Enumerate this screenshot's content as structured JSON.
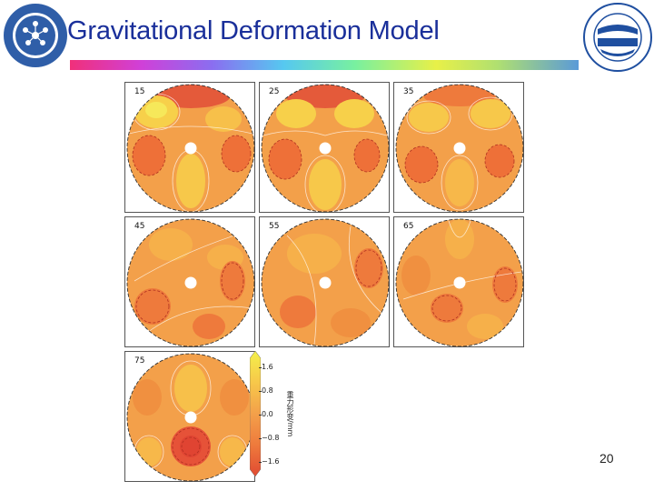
{
  "header": {
    "title": "Gravitational Deformation Model"
  },
  "figure": {
    "panels": [
      {
        "label": "15"
      },
      {
        "label": "25"
      },
      {
        "label": "35"
      },
      {
        "label": "45"
      },
      {
        "label": "55"
      },
      {
        "label": "65"
      },
      {
        "label": "75"
      }
    ],
    "colorbar": {
      "ticks": [
        "1.6",
        "0.8",
        "0.0",
        "−0.8",
        "−1.6"
      ],
      "label": "重力形变/mm",
      "colors": [
        "#f4f04a",
        "#f7c84a",
        "#f3a04a",
        "#ee7a3c",
        "#e04a32"
      ]
    }
  },
  "page_number": "20",
  "colors": {
    "title": "#1a2f9a",
    "logo_left": "#2f5ea8",
    "logo_right": "#1f4fa0"
  }
}
